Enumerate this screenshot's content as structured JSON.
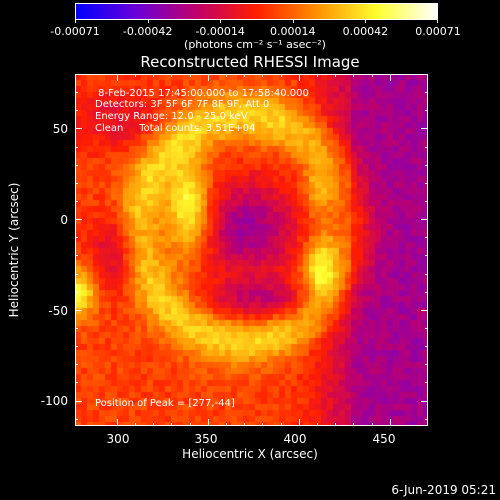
{
  "chart_data": {
    "type": "heatmap",
    "title": "Reconstructed RHESSI Image",
    "xlabel": "Heliocentric X (arcsec)",
    "ylabel": "Heliocentric Y (arcsec)",
    "xlim": [
      277,
      471
    ],
    "ylim": [
      -114,
      80
    ],
    "xticks": [
      "300",
      "350",
      "400",
      "450"
    ],
    "yticks": [
      "50",
      "0",
      "-50",
      "-100"
    ],
    "colorbar": {
      "ticks": [
        "-0.00071",
        "-0.00042",
        "-0.00014",
        "0.00014",
        "0.00042",
        "0.00071"
      ],
      "units": "(photons cm⁻² s⁻¹ asec⁻²)",
      "range": [
        -0.00071,
        0.00071
      ],
      "colors": [
        "#0000ff",
        "#6a00d8",
        "#c0006a",
        "#ff1e00",
        "#ff9000",
        "#ffff30",
        "#ffffff"
      ]
    },
    "annotations": [
      " 8-Feb-2015 17:45:00.000 to 17:58:40.000",
      "Detectors: 3F 5F 6F 7F 8F 9F, Att 0",
      "Energy Range: 12.0 - 25.0 keV",
      "Clean     Total counts: 3.51E+04"
    ],
    "peak_label": "Position of Peak = [277,-44]",
    "peak": [
      277,
      -44
    ]
  },
  "footer": {
    "date": "6-Jun-2019 05:21"
  }
}
